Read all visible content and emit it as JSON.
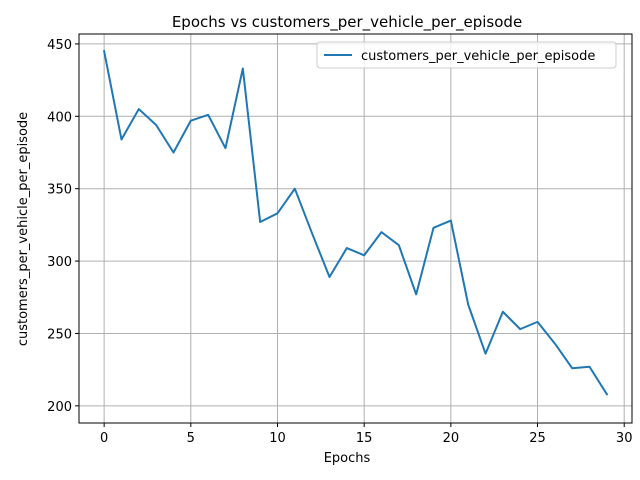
{
  "chart_data": {
    "type": "line",
    "title": "Epochs vs customers_per_vehicle_per_episode",
    "xlabel": "Epochs",
    "ylabel": "customers_per_vehicle_per_episode",
    "xlim": [
      -1.45,
      30.45
    ],
    "ylim": [
      188.15,
      456.85
    ],
    "xticks": [
      0,
      5,
      10,
      15,
      20,
      25,
      30
    ],
    "yticks": [
      200,
      250,
      300,
      350,
      400,
      450
    ],
    "grid": true,
    "legend_position": "top-right",
    "series": [
      {
        "name": "customers_per_vehicle_per_episode",
        "color": "#1f77b4",
        "x": [
          0,
          1,
          2,
          3,
          4,
          5,
          6,
          7,
          8,
          9,
          10,
          11,
          12,
          13,
          14,
          15,
          16,
          17,
          18,
          19,
          20,
          21,
          22,
          23,
          24,
          25,
          26,
          27,
          28,
          29
        ],
        "y": [
          445,
          384,
          405,
          394,
          375,
          397,
          401,
          378,
          433,
          327,
          333,
          350,
          319,
          289,
          309,
          304,
          320,
          311,
          277,
          323,
          328,
          270,
          236,
          265,
          253,
          258,
          243,
          226,
          227,
          208
        ]
      }
    ]
  }
}
